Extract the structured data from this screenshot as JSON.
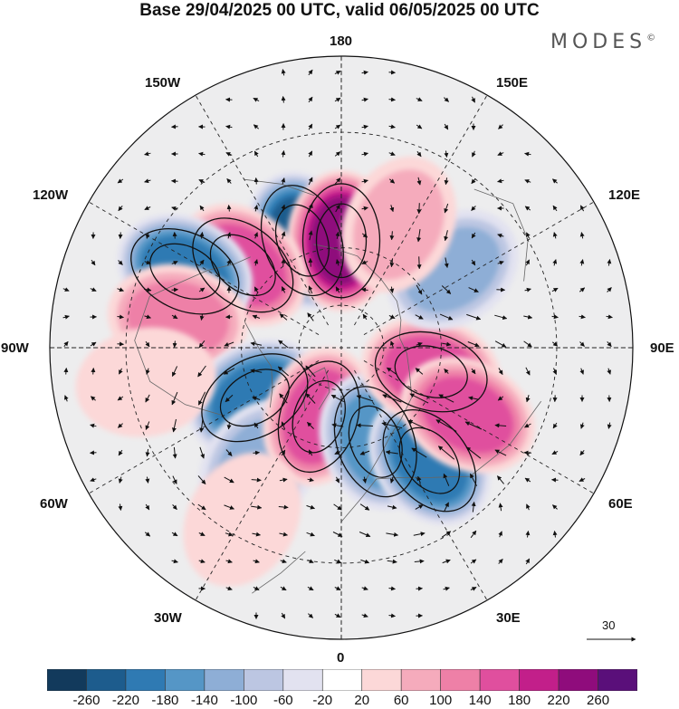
{
  "title": "Base 29/04/2025 00 UTC, valid 06/05/2025 00 UTC",
  "brand": "MODES",
  "brand_mark": "©",
  "longitude_labels": {
    "top": "180",
    "bottom": "0",
    "left": "90W",
    "right": "90E",
    "upper_left_1": "150W",
    "upper_left_2": "120W",
    "upper_right_1": "150E",
    "upper_right_2": "120E",
    "lower_left_1": "60W",
    "lower_left_2": "30W",
    "lower_right_1": "60E",
    "lower_right_2": "30E"
  },
  "reference_vector": "30",
  "colorbar": {
    "colors": [
      "#123a5c",
      "#1d5c8d",
      "#2f7ab3",
      "#5596c6",
      "#8eaed6",
      "#bcc6e2",
      "#e2e2f0",
      "#ffffff",
      "#fcd8d8",
      "#f5abbc",
      "#ee80a7",
      "#e04f9e",
      "#c21f8a",
      "#8f0c7c",
      "#5a0f7a"
    ],
    "tick_labels": [
      "-260",
      "-220",
      "-180",
      "-140",
      "-100",
      "-60",
      "-20",
      "20",
      "60",
      "100",
      "140",
      "180",
      "220",
      "260"
    ]
  },
  "anomaly_centres": [
    {
      "lon": 200,
      "colat": 34,
      "value": -220
    },
    {
      "lon": 180,
      "colat": 32,
      "value": 230
    },
    {
      "lon": 230,
      "colat": 38,
      "value": 160
    },
    {
      "lon": 244,
      "colat": 50,
      "value": -200
    },
    {
      "lon": 260,
      "colat": 48,
      "value": 110
    },
    {
      "lon": 300,
      "colat": 30,
      "value": -200
    },
    {
      "lon": 325,
      "colat": 42,
      "value": -120
    },
    {
      "lon": 342,
      "colat": 22,
      "value": 170
    },
    {
      "lon": 20,
      "colat": 30,
      "value": -170
    },
    {
      "lon": 38,
      "colat": 42,
      "value": -190
    },
    {
      "lon": 75,
      "colat": 28,
      "value": 160
    },
    {
      "lon": 62,
      "colat": 42,
      "value": 140
    },
    {
      "lon": 125,
      "colat": 40,
      "value": -130
    },
    {
      "lon": 155,
      "colat": 40,
      "value": 60
    },
    {
      "lon": 330,
      "colat": 56,
      "value": 40
    },
    {
      "lon": 280,
      "colat": 56,
      "value": 40
    }
  ]
}
